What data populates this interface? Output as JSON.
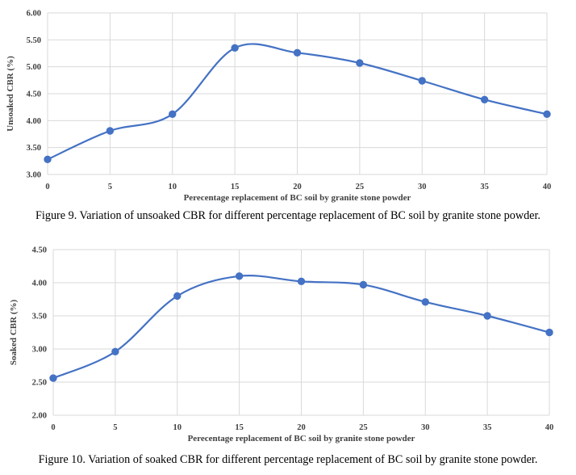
{
  "chart_data": [
    {
      "type": "line",
      "title": "",
      "xlabel": "Perecentage replacement of BC soil by granite stone powder",
      "ylabel": "Unsoaked CBR (%)",
      "x": [
        0,
        5,
        10,
        15,
        20,
        25,
        30,
        35,
        40
      ],
      "x_ticks": [
        "0",
        "5",
        "10",
        "15",
        "20",
        "25",
        "30",
        "35",
        "40"
      ],
      "y_ticks": [
        "3.00",
        "3.50",
        "4.00",
        "4.50",
        "5.00",
        "5.50",
        "6.00"
      ],
      "ylim": [
        3.0,
        6.0
      ],
      "grid": true,
      "legend": "none",
      "series": [
        {
          "values": [
            3.28,
            3.81,
            4.12,
            5.35,
            5.26,
            5.07,
            4.74,
            4.39,
            4.12
          ]
        }
      ],
      "color": "#4472c4",
      "caption": "Figure 9. Variation of unsoaked CBR for different percentage replacement of BC soil by granite stone powder."
    },
    {
      "type": "line",
      "title": "",
      "xlabel": "Perecentage replacement of BC soil by granite stone powder",
      "ylabel": "Soaked CBR (%)",
      "x": [
        0,
        5,
        10,
        15,
        20,
        25,
        30,
        35,
        40
      ],
      "x_ticks": [
        "0",
        "5",
        "10",
        "15",
        "20",
        "25",
        "30",
        "35",
        "40"
      ],
      "y_ticks": [
        "2.00",
        "2.50",
        "3.00",
        "3.50",
        "4.00",
        "4.50"
      ],
      "ylim": [
        2.0,
        4.5
      ],
      "grid": true,
      "legend": "none",
      "series": [
        {
          "values": [
            2.56,
            2.96,
            3.8,
            4.1,
            4.02,
            3.97,
            3.71,
            3.5,
            3.25
          ]
        }
      ],
      "color": "#4472c4",
      "caption": "Figure 10. Variation of soaked CBR for different percentage replacement of BC soil by granite stone powder."
    }
  ]
}
